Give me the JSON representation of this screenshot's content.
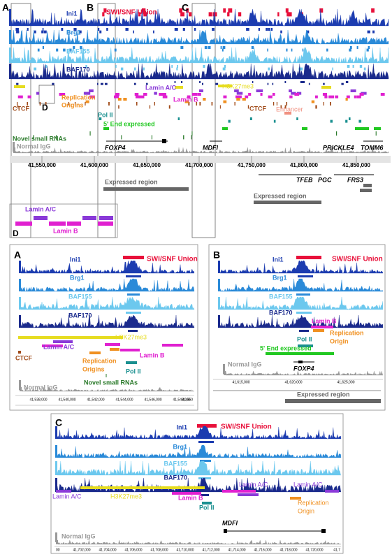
{
  "overview": {
    "letters": [
      "A",
      "B",
      "C"
    ],
    "tracks": [
      "SWI/SNF Union",
      "Ini1",
      "Brg1",
      "BAF155",
      "BAF170"
    ],
    "features": [
      "Lamin A/C",
      "H3K27me3",
      "Lamin B",
      "CTCF",
      "Replication",
      "Origins",
      "CTCF",
      "Enhancer",
      "Pol II",
      "5' End expressed",
      "Novel small RNAs",
      "Normal IgG",
      "D"
    ],
    "genes": [
      "FOXP4",
      "MDFI",
      "PRICKLE4",
      "TOMM6",
      "TFEB",
      "PGC",
      "FRS3"
    ],
    "axis_ticks": [
      "41,550,000",
      "41,600,000",
      "41,650,000",
      "41,700,000",
      "41,750,000",
      "41,800,000",
      "41,850,000"
    ],
    "regions": [
      "Expressed region",
      "Expressed region"
    ]
  },
  "inset_d": {
    "labels": [
      "Lamin A/C",
      "Lamin B"
    ],
    "letter": "D"
  },
  "panel_a": {
    "letter": "A",
    "tracks": [
      "Ini1",
      "SWI/SNF Union",
      "Brg1",
      "BAF155",
      "BAF170"
    ],
    "features": [
      "H3K27me3",
      "Lamin A/C",
      "Lamin B",
      "CTCF",
      "Replication",
      "Origins",
      "Pol II",
      "Novel small RNAs",
      "Normal IgG"
    ],
    "axis_ticks": [
      "41,538,000",
      "41,540,000",
      "41,542,000",
      "41,544,000",
      "41,546,000",
      "41,548,000",
      "41,550"
    ]
  },
  "panel_b": {
    "letter": "B",
    "tracks": [
      "Ini1",
      "SWI/SNF Union",
      "Brg1",
      "BAF155",
      "BAF170"
    ],
    "features": [
      "Lamin B",
      "Replication",
      "Origin",
      "Pol II",
      "5' End expressed",
      "Normal IgG"
    ],
    "gene": "FOXP4",
    "axis_ticks": [
      "41,615,000",
      "41,620,000",
      "41,625,000"
    ],
    "region": "Expressed region"
  },
  "panel_c": {
    "letter": "C",
    "tracks": [
      "Ini1",
      "SWI/SNF Union",
      "Brg1",
      "BAF155",
      "BAF170"
    ],
    "features": [
      "Lamin A/C",
      "H3K27me3",
      "Lamin B",
      "Lamin A/C",
      "Lamin A/C",
      "Pol II",
      "Replication",
      "Origin",
      "Normal IgG"
    ],
    "gene": "MDFI",
    "axis_ticks": [
      "00",
      "41,702,000",
      "41,704,000",
      "41,706,000",
      "41,708,000",
      "41,710,000",
      "41,712,000",
      "41,714,000",
      "41,716,000",
      "41,718,000",
      "41,720,000",
      "41,7"
    ]
  }
}
